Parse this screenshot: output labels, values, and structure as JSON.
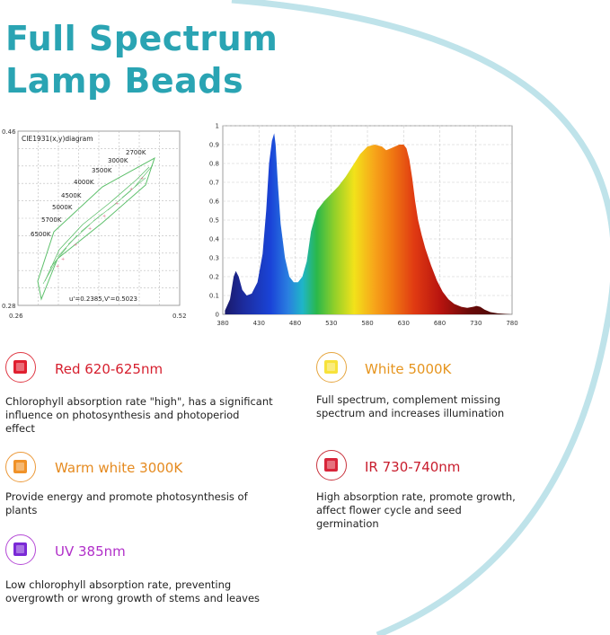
{
  "title": {
    "line1": "Full Spectrum",
    "line2": "Lamp Beads"
  },
  "colors": {
    "title": "#2aa4b3",
    "arc": "#bfe3ea"
  },
  "chart_data": [
    {
      "type": "diagram",
      "title": "CIE1931(x,y)diagram",
      "x_ticks": [
        "0.26",
        "0.52"
      ],
      "y_ticks": [
        "0.46",
        "0.28"
      ],
      "xlim": [
        0.26,
        0.52
      ],
      "ylim": [
        0.28,
        0.46
      ],
      "cct_labels": [
        "2700K",
        "3000K",
        "3500K",
        "4000K",
        "4500K",
        "5000K",
        "5700K",
        "6500K"
      ],
      "annotation": "u'=0.2385,V'=0.5023"
    },
    {
      "type": "area",
      "x_ticks": [
        "380",
        "430",
        "480",
        "530",
        "580",
        "630",
        "680",
        "730",
        "780"
      ],
      "y_ticks": [
        "0",
        "0.1",
        "0.2",
        "0.3",
        "0.4",
        "0.5",
        "0.6",
        "0.7",
        "0.8",
        "0.9",
        "1"
      ],
      "xlim": [
        380,
        780
      ],
      "ylim": [
        0,
        1
      ],
      "x": [
        383,
        390,
        395,
        398,
        402,
        407,
        413,
        420,
        428,
        435,
        440,
        444,
        448,
        451,
        453,
        456,
        460,
        466,
        472,
        478,
        484,
        490,
        496,
        502,
        510,
        520,
        530,
        540,
        550,
        560,
        570,
        580,
        590,
        600,
        606,
        612,
        618,
        624,
        630,
        634,
        638,
        642,
        646,
        650,
        655,
        660,
        668,
        676,
        684,
        692,
        700,
        710,
        718,
        726,
        731,
        736,
        742,
        750,
        760,
        780
      ],
      "y": [
        0.02,
        0.08,
        0.2,
        0.23,
        0.2,
        0.13,
        0.1,
        0.11,
        0.17,
        0.32,
        0.55,
        0.8,
        0.92,
        0.96,
        0.9,
        0.7,
        0.48,
        0.3,
        0.2,
        0.17,
        0.17,
        0.2,
        0.28,
        0.44,
        0.55,
        0.6,
        0.64,
        0.68,
        0.73,
        0.79,
        0.85,
        0.89,
        0.9,
        0.89,
        0.87,
        0.88,
        0.89,
        0.9,
        0.9,
        0.88,
        0.82,
        0.72,
        0.6,
        0.5,
        0.42,
        0.35,
        0.26,
        0.18,
        0.12,
        0.08,
        0.055,
        0.04,
        0.035,
        0.04,
        0.045,
        0.04,
        0.025,
        0.012,
        0.005,
        0.0
      ]
    }
  ],
  "features": [
    {
      "title": "Red 620-625nm",
      "desc": [
        "Chlorophyll absorption rate \"high\", has a significant",
        "influence on photosynthesis and photoperiod",
        "effect"
      ],
      "chip_color": "#e02030",
      "ring_color": "#e03a46",
      "title_color": "#d61f2e"
    },
    {
      "title": "White 5000K",
      "desc": [
        "Full spectrum, complement missing",
        "spectrum and increases illumination"
      ],
      "chip_color": "#f7e23a",
      "ring_color": "#e6a640",
      "title_color": "#e6951f"
    },
    {
      "title": "Warm white 3000K",
      "desc": [
        "Provide energy and promote photosynthesis of",
        "plants"
      ],
      "chip_color": "#f09228",
      "ring_color": "#ec9a3a",
      "title_color": "#e58a1f"
    },
    {
      "title": "IR 730-740nm",
      "desc": [
        "High absorption rate, promote growth,",
        "affect flower cycle and seed",
        "germination"
      ],
      "chip_color": "#d8253a",
      "ring_color": "#c9353f",
      "title_color": "#c81d2d"
    },
    {
      "title": "UV 385nm",
      "desc": [
        "Low chlorophyll absorption rate, preventing",
        "overgrowth or wrong growth of stems and leaves"
      ],
      "chip_color": "#7a2ad6",
      "ring_color": "#b54ad6",
      "title_color": "#b12fc9"
    }
  ]
}
